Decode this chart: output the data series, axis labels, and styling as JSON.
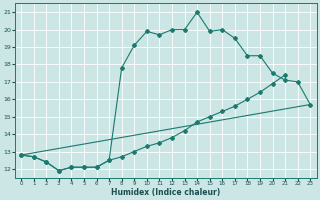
{
  "xlabel": "Humidex (Indice chaleur)",
  "bg_color": "#cce5e5",
  "grid_color": "#ffffff",
  "line_color": "#1a7a6e",
  "xlim": [
    -0.5,
    23.5
  ],
  "ylim": [
    11.5,
    21.5
  ],
  "xticks": [
    0,
    1,
    2,
    3,
    4,
    5,
    6,
    7,
    8,
    9,
    10,
    11,
    12,
    13,
    14,
    15,
    16,
    17,
    18,
    19,
    20,
    21,
    22,
    23
  ],
  "yticks": [
    12,
    13,
    14,
    15,
    16,
    17,
    18,
    19,
    20,
    21
  ],
  "line1_x": [
    0,
    1,
    2,
    3,
    4,
    5,
    6,
    7,
    8,
    9,
    10,
    11,
    12,
    13,
    14,
    15,
    16,
    17,
    18,
    19,
    20,
    21,
    22,
    23
  ],
  "line1_y": [
    12.8,
    12.7,
    12.4,
    11.9,
    12.1,
    12.1,
    12.1,
    12.5,
    17.8,
    19.1,
    19.9,
    19.7,
    20.0,
    20.0,
    21.0,
    19.9,
    20.0,
    19.5,
    18.5,
    18.5,
    17.5,
    17.1,
    17.0,
    15.7
  ],
  "line2_x": [
    0,
    1,
    2,
    3,
    4,
    5,
    6,
    7,
    8,
    9,
    10,
    11,
    12,
    13,
    14,
    15,
    16,
    17,
    18,
    19,
    20,
    21
  ],
  "line2_y": [
    12.8,
    12.7,
    12.4,
    11.9,
    12.1,
    12.1,
    12.1,
    12.5,
    12.7,
    13.0,
    13.3,
    13.5,
    13.8,
    14.2,
    14.7,
    15.0,
    15.3,
    15.6,
    16.0,
    16.4,
    16.9,
    17.4
  ],
  "line3_x": [
    0,
    23
  ],
  "line3_y": [
    12.8,
    15.7
  ]
}
